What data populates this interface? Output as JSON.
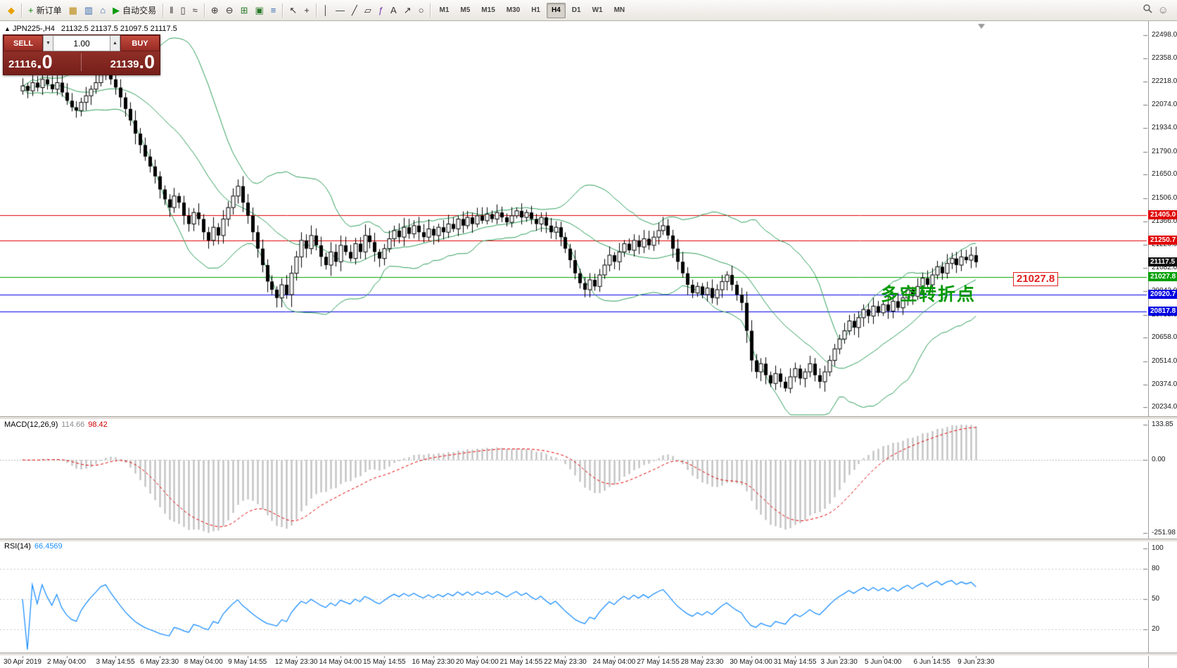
{
  "toolbar": {
    "groups": [
      [
        {
          "name": "app-logo-icon",
          "glyph": "◆",
          "color": "#e8a000"
        }
      ],
      [
        {
          "name": "new-order-button",
          "glyph": "+",
          "color": "#0a8a0a",
          "label": "新订单"
        },
        {
          "name": "market-watch-icon",
          "glyph": "▦",
          "color": "#b8860b"
        },
        {
          "name": "data-window-icon",
          "glyph": "▥",
          "color": "#3a6ab0"
        },
        {
          "name": "navigator-icon",
          "glyph": "⌂",
          "color": "#3a6ab0"
        },
        {
          "name": "autotrading-button",
          "glyph": "▶",
          "color": "#0a9a0a",
          "label": "自动交易"
        }
      ],
      [
        {
          "name": "bar-chart-icon",
          "glyph": "‖",
          "color": "#333333"
        },
        {
          "name": "candlestick-chart-icon",
          "glyph": "▯",
          "color": "#333333"
        },
        {
          "name": "line-chart-icon",
          "glyph": "≈",
          "color": "#333333"
        }
      ],
      [
        {
          "name": "zoom-in-icon",
          "glyph": "⊕",
          "color": "#333333"
        },
        {
          "name": "zoom-out-icon",
          "glyph": "⊖",
          "color": "#333333"
        },
        {
          "name": "tile-windows-icon",
          "glyph": "⊞",
          "color": "#2a7a2a"
        },
        {
          "name": "auto-arrange-icon",
          "glyph": "▣",
          "color": "#2a7a2a"
        },
        {
          "name": "indicators-list-icon",
          "glyph": "≡",
          "color": "#3a6ab0"
        }
      ],
      [
        {
          "name": "cursor-icon",
          "glyph": "↖",
          "color": "#333333"
        },
        {
          "name": "crosshair-icon",
          "glyph": "+",
          "color": "#333333"
        }
      ],
      [
        {
          "name": "vertical-line-icon",
          "glyph": "│",
          "color": "#333333"
        },
        {
          "name": "horizontal-line-icon",
          "glyph": "—",
          "color": "#333333"
        },
        {
          "name": "trendline-icon",
          "glyph": "╱",
          "color": "#333333"
        },
        {
          "name": "channel-icon",
          "glyph": "▱",
          "color": "#333333"
        },
        {
          "name": "fibonacci-icon",
          "glyph": "ƒ",
          "color": "#7a3ab0"
        },
        {
          "name": "text-label-icon",
          "glyph": "A",
          "color": "#333333"
        },
        {
          "name": "arrow-object-icon",
          "glyph": "↗",
          "color": "#333333"
        },
        {
          "name": "shapes-icon",
          "glyph": "○",
          "color": "#333333"
        }
      ]
    ],
    "timeframes": [
      "M1",
      "M5",
      "M15",
      "M30",
      "H1",
      "H4",
      "D1",
      "W1",
      "MN"
    ],
    "active_timeframe": "H4"
  },
  "chart": {
    "symbol_period": "JPN225-,H4",
    "ohlc": "21132.5 21137.5 21097.5 21117.5",
    "trade_panel": {
      "sell_label": "SELL",
      "buy_label": "BUY",
      "volume": "1.00",
      "spin_down_glyph": "▼",
      "spin_up_glyph": "▲",
      "sell_price": "21116",
      "sell_pips": ".0",
      "buy_price": "21139",
      "buy_pips": ".0"
    },
    "annotation": {
      "text": "多空转折点",
      "color": "#009900"
    },
    "price_box": {
      "text": "21027.8",
      "color": "#e02020"
    },
    "axis": {
      "price_top": 22498.0,
      "price_bottom": 20234.0,
      "price_ticks": [
        "22498.0",
        "22358.0",
        "22218.0",
        "22074.0",
        "21934.0",
        "21790.0",
        "21650.0",
        "21506.0",
        "21366.0",
        "21226.0",
        "21082.0",
        "20942.0",
        "20798.0",
        "20658.0",
        "20514.0",
        "20374.0",
        "20234.0"
      ]
    },
    "hlines": [
      {
        "price": 21405.0,
        "label": "21405.0",
        "color": "#e00000"
      },
      {
        "price": 21250.7,
        "label": "21250.7",
        "color": "#e00000"
      },
      {
        "price": 21027.8,
        "label": "21027.8",
        "color": "#00a000"
      },
      {
        "price": 20920.7,
        "label": "20920.7",
        "color": "#0000e0"
      },
      {
        "price": 20817.8,
        "label": "20817.8",
        "color": "#0000e0"
      }
    ],
    "current_price": {
      "value": 21117.5,
      "label": "21117.5",
      "color": "#111111"
    },
    "time_ticks": [
      "30 Apr 2019",
      "2 May 04:00",
      "3 May 14:55",
      "6 May 23:30",
      "8 May 04:00",
      "9 May 14:55",
      "12 May 23:30",
      "14 May 04:00",
      "15 May 14:55",
      "16 May 23:30",
      "20 May 04:00",
      "21 May 14:55",
      "22 May 23:30",
      "24 May 04:00",
      "27 May 14:55",
      "28 May 23:30",
      "30 May 04:00",
      "31 May 14:55",
      "3 Jun 23:30",
      "5 Jun 04:00",
      "6 Jun 14:55",
      "9 Jun 23:30"
    ],
    "bollinger": {
      "period": 20,
      "deviation": 2,
      "color": "#2e9e5b"
    },
    "candle_up_color": "#ffffff",
    "candle_down_color": "#000000",
    "candle_first_open": 22160,
    "candles_close": [
      22190,
      22160,
      22210,
      22180,
      22230,
      22200,
      22170,
      22210,
      22150,
      22100,
      22060,
      22040,
      22090,
      22130,
      22170,
      22210,
      22260,
      22280,
      22230,
      22180,
      22120,
      22050,
      21980,
      21900,
      21830,
      21760,
      21700,
      21640,
      21560,
      21500,
      21450,
      21520,
      21480,
      21400,
      21350,
      21420,
      21380,
      21300,
      21250,
      21330,
      21280,
      21380,
      21450,
      21520,
      21580,
      21480,
      21400,
      21300,
      21200,
      21100,
      21000,
      20950,
      20900,
      20980,
      20920,
      21050,
      21150,
      21250,
      21200,
      21280,
      21220,
      21150,
      21100,
      21180,
      21120,
      21220,
      21180,
      21140,
      21230,
      21180,
      21280,
      21240,
      21180,
      21140,
      21200,
      21260,
      21310,
      21270,
      21330,
      21290,
      21340,
      21300,
      21270,
      21320,
      21280,
      21330,
      21300,
      21350,
      21320,
      21380,
      21340,
      21390,
      21350,
      21400,
      21370,
      21410,
      21380,
      21420,
      21390,
      21360,
      21400,
      21430,
      21390,
      21420,
      21380,
      21350,
      21390,
      21340,
      21300,
      21330,
      21270,
      21200,
      21130,
      21050,
      20990,
      20950,
      21010,
      20970,
      21040,
      21100,
      21160,
      21120,
      21180,
      21230,
      21190,
      21250,
      21210,
      21260,
      21220,
      21270,
      21310,
      21340,
      21280,
      21200,
      21120,
      21050,
      20980,
      20930,
      20970,
      20920,
      20960,
      20900,
      20950,
      21000,
      21040,
      20980,
      20920,
      20870,
      20700,
      20520,
      20450,
      20500,
      20430,
      20380,
      20440,
      20390,
      20350,
      20420,
      20470,
      20410,
      20450,
      20500,
      20430,
      20390,
      20450,
      20520,
      20590,
      20650,
      20700,
      20760,
      20720,
      20780,
      20830,
      20790,
      20850,
      20810,
      20860,
      20820,
      20880,
      20840,
      20900,
      20950,
      20910,
      20970,
      21020,
      20980,
      21040,
      21090,
      21050,
      21110,
      21140,
      21100,
      21150,
      21130,
      21160,
      21117.5
    ]
  },
  "macd": {
    "name": "MACD(12,26,9)",
    "main": "114.66",
    "signal": "98.42",
    "scale_max": "133.85",
    "scale_zero": "0.00",
    "scale_min": "-251.98",
    "max": 133.85,
    "min": -251.98,
    "histogram_color": "#c2c2c2",
    "signal_color": "#e00000"
  },
  "rsi": {
    "name": "RSI(14)",
    "value": "66.4569",
    "period": 14,
    "color": "#1e90ff",
    "scale": [
      "100",
      "80",
      "50",
      "20"
    ],
    "levels": [
      80,
      50,
      20
    ]
  }
}
